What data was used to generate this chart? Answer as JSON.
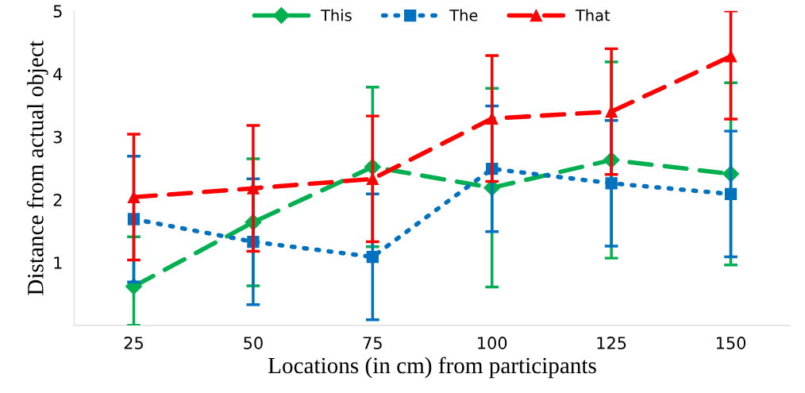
{
  "chart_data": {
    "type": "line",
    "xlabel": "Locations (in cm) from participants",
    "ylabel": "Distance from actual object",
    "categories": [
      "25",
      "50",
      "75",
      "100",
      "125",
      "150"
    ],
    "series": [
      {
        "name": "This",
        "color": "#00b050",
        "marker": "diamond",
        "line_style": "dashed",
        "values": [
          0.62,
          1.64,
          2.52,
          2.19,
          2.63,
          2.41
        ],
        "errors": [
          [
            0,
            1.41
          ],
          1.01,
          1.27,
          1.58,
          1.56,
          1.45
        ]
      },
      {
        "name": "The",
        "color": "#0070c0",
        "marker": "square",
        "line_style": "dotted",
        "values": [
          1.69,
          1.33,
          1.09,
          2.49,
          2.26,
          2.09
        ],
        "errors": [
          1.0,
          1.0,
          1.0,
          1.0,
          1.0,
          1.0
        ]
      },
      {
        "name": "That",
        "color": "#ff0000",
        "marker": "triangle",
        "line_style": "dashed",
        "values": [
          2.04,
          2.18,
          2.33,
          3.29,
          3.4,
          4.28
        ],
        "errors": [
          1.0,
          1.0,
          1.0,
          1.0,
          1.0,
          [
            3.28,
            5
          ]
        ]
      }
    ],
    "ylim": [
      0,
      5
    ],
    "yticks": [
      1,
      2,
      3,
      4,
      5
    ],
    "grid": false,
    "legend": "top"
  }
}
